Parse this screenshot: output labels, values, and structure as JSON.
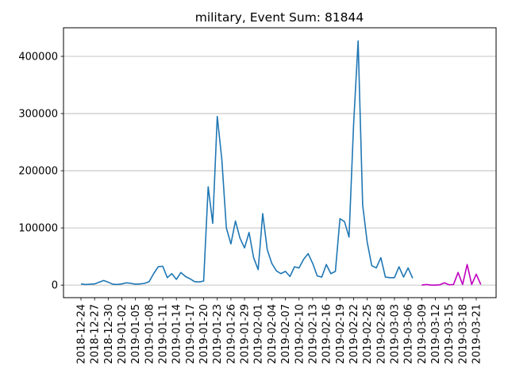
{
  "chart_data": {
    "type": "line",
    "title": "military, Event Sum: 81844",
    "xlabel": "",
    "ylabel": "",
    "ylim": [
      -22000,
      450000
    ],
    "yticks": [
      0,
      100000,
      200000,
      300000,
      400000
    ],
    "ytick_labels": [
      "0",
      "100000",
      "200000",
      "300000",
      "400000"
    ],
    "grid": "horizontal",
    "legend": "none",
    "xtick_labels": [
      "2018-12-24",
      "2018-12-27",
      "2018-12-30",
      "2019-01-02",
      "2019-01-05",
      "2019-01-08",
      "2019-01-11",
      "2019-01-14",
      "2019-01-17",
      "2019-01-20",
      "2019-01-23",
      "2019-01-26",
      "2019-01-29",
      "2019-02-01",
      "2019-02-04",
      "2019-02-07",
      "2019-02-10",
      "2019-02-13",
      "2019-02-16",
      "2019-02-19",
      "2019-02-22",
      "2019-02-25",
      "2019-02-28",
      "2019-03-03",
      "2019-03-06",
      "2019-03-09",
      "2019-03-12",
      "2019-03-15",
      "2019-03-18",
      "2019-03-21"
    ],
    "series": [
      {
        "color": "#1f77b4",
        "start_date": "2018-12-24",
        "values": [
          2000,
          1000,
          1500,
          2000,
          5000,
          8000,
          5000,
          1500,
          1000,
          2000,
          4000,
          3000,
          1500,
          2000,
          3000,
          6000,
          20000,
          32000,
          33000,
          13000,
          20000,
          10000,
          22000,
          15000,
          11000,
          6000,
          5500,
          7000,
          172000,
          108000,
          295000,
          220000,
          100000,
          72000,
          112000,
          82000,
          65000,
          92000,
          48000,
          27000,
          125000,
          62000,
          38000,
          25000,
          20000,
          24000,
          15000,
          32000,
          30000,
          45000,
          55000,
          38000,
          16000,
          14000,
          36000,
          20000,
          24000,
          116000,
          111000,
          84000,
          280000,
          427000,
          140000,
          75000,
          34000,
          30000,
          48000,
          14000,
          13000,
          13000,
          32000,
          14000,
          30000,
          12000
        ]
      },
      {
        "color": "#bf00bf",
        "start_date": "2019-03-09",
        "values": [
          0,
          1000,
          0,
          0,
          500,
          4000,
          500,
          1000,
          22000,
          1000,
          36000,
          1000,
          19000,
          1000
        ]
      }
    ]
  }
}
